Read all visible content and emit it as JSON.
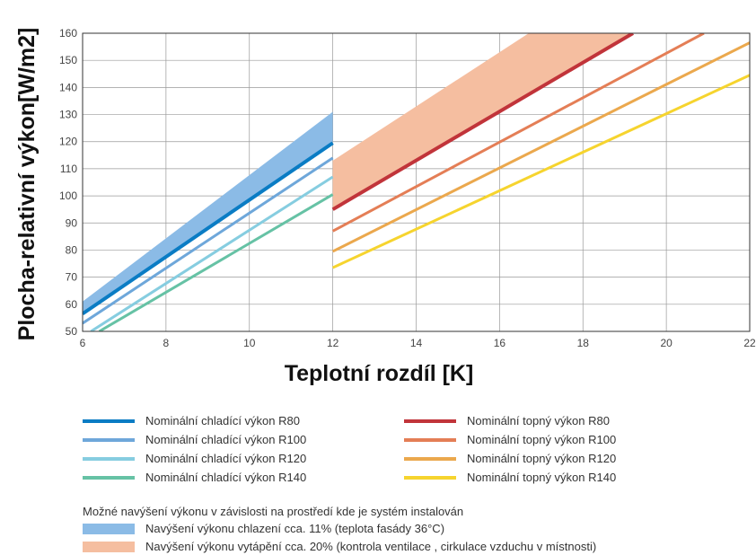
{
  "chart_data": {
    "type": "line",
    "xlabel": "Teplotní rozdíl [K]",
    "ylabel": "Plocha-relativní výkon[W/m2]",
    "xlim": [
      6,
      22
    ],
    "ylim": [
      50,
      160
    ],
    "xticks": [
      6,
      8,
      10,
      12,
      14,
      16,
      18,
      20,
      22
    ],
    "yticks": [
      50,
      60,
      70,
      80,
      90,
      100,
      110,
      120,
      130,
      140,
      150,
      160
    ],
    "grid": true,
    "series": [
      {
        "name": "Nominální chladící výkon R80",
        "color": "#0a7cc4",
        "width": 4,
        "points": [
          [
            6,
            56.5
          ],
          [
            12,
            119.5
          ]
        ]
      },
      {
        "name": "Nominální chladící výkon R100",
        "color": "#6ea7da",
        "width": 3,
        "points": [
          [
            6,
            53
          ],
          [
            12,
            114
          ]
        ]
      },
      {
        "name": "Nominální chladící výkon R120",
        "color": "#86cde0",
        "width": 3,
        "points": [
          [
            6.2,
            50
          ],
          [
            12,
            107
          ]
        ]
      },
      {
        "name": "Nominální chladící výkon R140",
        "color": "#66c2a5",
        "width": 3,
        "points": [
          [
            6.4,
            50
          ],
          [
            12,
            100.5
          ]
        ]
      },
      {
        "name": "Nominální topný výkon R80",
        "color": "#c1343a",
        "width": 4,
        "points": [
          [
            12,
            95
          ],
          [
            19.2,
            160
          ]
        ]
      },
      {
        "name": "Nominální topný výkon R100",
        "color": "#e47e56",
        "width": 3,
        "points": [
          [
            12,
            87
          ],
          [
            20.9,
            160
          ]
        ]
      },
      {
        "name": "Nominální topný výkon R120",
        "color": "#eba84d",
        "width": 3,
        "points": [
          [
            12,
            79.5
          ],
          [
            22,
            156.5
          ]
        ]
      },
      {
        "name": "Nominální topný výkon R140",
        "color": "#f6d42e",
        "width": 3,
        "points": [
          [
            12,
            73.5
          ],
          [
            22,
            144.5
          ]
        ]
      }
    ],
    "bands": [
      {
        "name": "Navýšení výkonu chlazení cca. 11% (teplota fasády 36°C)",
        "color": "#8bbbe6",
        "polygon": [
          [
            6,
            56.5
          ],
          [
            12,
            119.5
          ],
          [
            12,
            131
          ],
          [
            6,
            61
          ]
        ]
      },
      {
        "name": "Navýšení výkonu vytápění cca. 20% (kontrola ventilace , cirkulace vzduchu v místnosti)",
        "color": "#f5bea0",
        "polygon": [
          [
            12,
            95
          ],
          [
            19.2,
            160
          ],
          [
            16.7,
            160
          ],
          [
            12,
            113
          ]
        ]
      }
    ]
  },
  "legend": {
    "cooling": [
      {
        "label": "Nominální chladící výkon R80",
        "color": "#0a7cc4"
      },
      {
        "label": "Nominální chladící výkon R100",
        "color": "#6ea7da"
      },
      {
        "label": "Nominální chladící výkon R120",
        "color": "#86cde0"
      },
      {
        "label": "Nominální chladící výkon R140",
        "color": "#66c2a5"
      }
    ],
    "heating": [
      {
        "label": "Nominální topný výkon R80",
        "color": "#c1343a"
      },
      {
        "label": "Nominální topný výkon R100",
        "color": "#e47e56"
      },
      {
        "label": "Nominální topný výkon R120",
        "color": "#eba84d"
      },
      {
        "label": "Nominální topný výkon R140",
        "color": "#f6d42e"
      }
    ],
    "band_note": "Možné navýšení výkonu v závislosti na prostředí kde je systém instalován",
    "bands": [
      {
        "label": "Navýšení výkonu chlazení cca. 11% (teplota fasády 36°C)",
        "color": "#8bbbe6"
      },
      {
        "label": "Navýšení výkonu vytápění cca. 20% (kontrola ventilace , cirkulace vzduchu v místnosti)",
        "color": "#f5bea0"
      }
    ]
  }
}
